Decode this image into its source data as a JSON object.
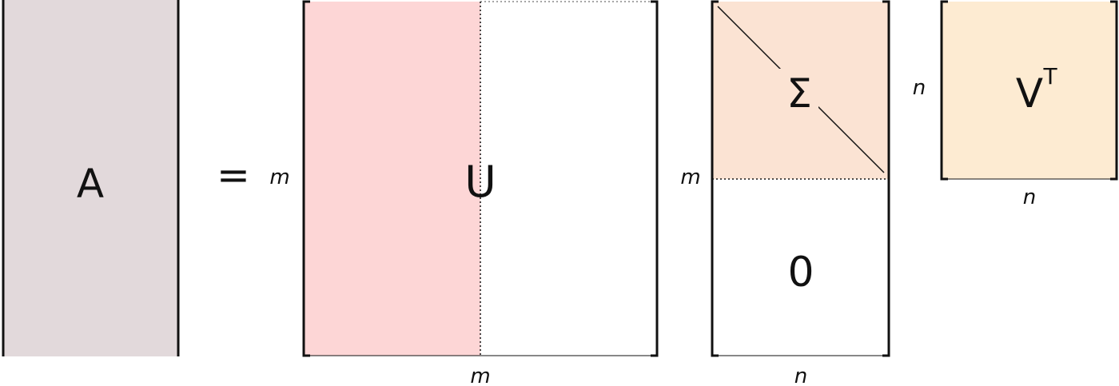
{
  "equation": {
    "A": "A",
    "equals": "=",
    "U": "U",
    "Sigma": "Σ",
    "zero": "0",
    "V": "V",
    "transpose": "T"
  },
  "dimensions": {
    "U_rows": "m",
    "U_cols": "m",
    "Sigma_rows": "m",
    "Sigma_cols": "n",
    "V_rows": "n",
    "V_cols": "n"
  },
  "colors": {
    "A_fill": "#e2d9db",
    "U_left_fill": "#fdd6d6",
    "Sigma_fill": "#fbe3d3",
    "V_fill": "#fdebd2",
    "stroke": "#111111"
  }
}
